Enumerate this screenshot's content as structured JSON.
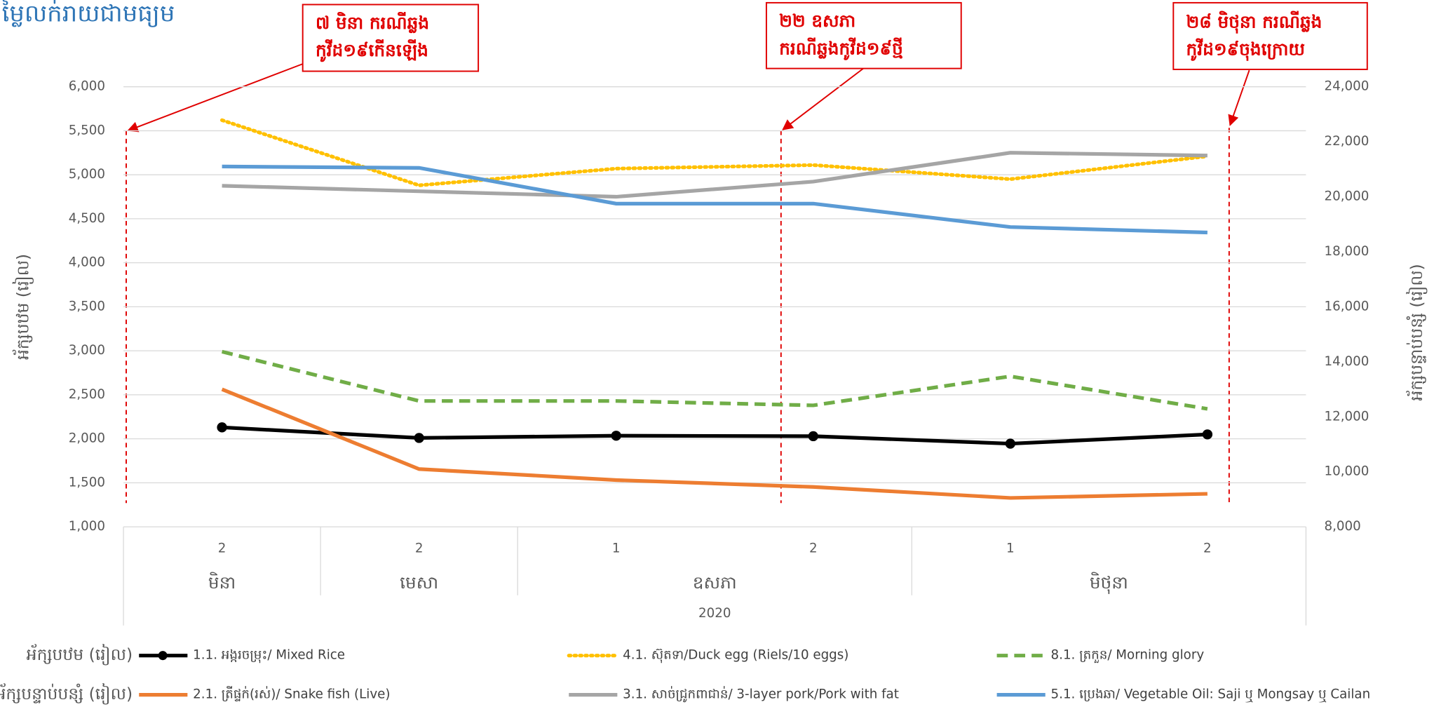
{
  "chart_data": {
    "type": "line",
    "title": "ម្លៃលក់រាយជាមធ្យម",
    "y_label": "អ័ក្សបឋម (រៀល)",
    "y2_label": "អ័ក្សបន្ទាប់បន្សំ (រៀល)",
    "categories": [
      "2",
      "2",
      "1",
      "2",
      "1",
      "2"
    ],
    "months": [
      "មិនា",
      "មេសា",
      "ឧសភា",
      null,
      "មិថុនា",
      null
    ],
    "year": "2020",
    "ylim": [
      1000,
      6000
    ],
    "yticks": [
      {
        "value": 1000,
        "label": "1,000"
      },
      {
        "value": 1500,
        "label": "1,500"
      },
      {
        "value": 2000,
        "label": "2,000"
      },
      {
        "value": 2500,
        "label": "2,500"
      },
      {
        "value": 3000,
        "label": "3,000"
      },
      {
        "value": 3500,
        "label": "3,500"
      },
      {
        "value": 4000,
        "label": "4,000"
      },
      {
        "value": 4500,
        "label": "4,500"
      },
      {
        "value": 5000,
        "label": "5,000"
      },
      {
        "value": 5500,
        "label": "5,500"
      },
      {
        "value": 6000,
        "label": "6,000"
      }
    ],
    "y2lim": [
      8000,
      24000
    ],
    "y2ticks": [
      {
        "value": 8000,
        "label": "8,000"
      },
      {
        "value": 10000,
        "label": "10,000"
      },
      {
        "value": 12000,
        "label": "12,000"
      },
      {
        "value": 14000,
        "label": "14,000"
      },
      {
        "value": 16000,
        "label": "16,000"
      },
      {
        "value": 18000,
        "label": "18,000"
      },
      {
        "value": 20000,
        "label": "20,000"
      },
      {
        "value": 22000,
        "label": "22,000"
      },
      {
        "value": 24000,
        "label": "24,000"
      }
    ],
    "grid": true,
    "legend_groups": [
      "អ័ក្សបឋម (រៀល)",
      "អ័ក្សបន្ទាប់បន្សំ (រៀល)"
    ],
    "series": [
      {
        "name": "1.1. អង្ករចម្រុះ/ Mixed Rice",
        "color": "#000000",
        "style": "solid",
        "marker": true,
        "axis": "y",
        "values": [
          2130,
          2010,
          2035,
          2030,
          1945,
          2050
        ]
      },
      {
        "name": "4.1. ស៊ុតទា/Duck egg (Riels/10 eggs)",
        "color": "#ffc000",
        "style": "dotted",
        "axis": "y",
        "values": [
          5620,
          4880,
          5070,
          5110,
          4950,
          5210
        ]
      },
      {
        "name": "8.1. ត្រកួន/ Morning glory",
        "color": "#70ad47",
        "style": "dashed",
        "axis": "y",
        "values": [
          2990,
          2430,
          2430,
          2380,
          2710,
          2340
        ]
      },
      {
        "name": "2.1. ត្រីផ្ទក់(រស់)/ Snake fish (Live)",
        "color": "#ed7d31",
        "style": "solid",
        "axis": "y2",
        "values": [
          13000,
          10100,
          9700,
          9450,
          9050,
          9200
        ]
      },
      {
        "name": "3.1. សាច់ជ្រូកពាជាន់/  3-layer pork/Pork with fat",
        "color": "#a5a5a5",
        "style": "solid",
        "axis": "y2",
        "values": [
          20400,
          20200,
          20000,
          20550,
          21600,
          21500
        ]
      },
      {
        "name": "5.1. ប្រេងឆា/ Vegetable Oil: Saji ឬ Mongsay ឬ Cailan",
        "color": "#5b9bd5",
        "style": "solid",
        "axis": "y2",
        "values": [
          21100,
          21050,
          19750,
          19750,
          18900,
          18700
        ]
      }
    ],
    "annotations": [
      {
        "lines": [
          "៧ មិនា ករណីឆ្លង",
          "កូវីដ១៩កើនឡើង"
        ]
      },
      {
        "lines": [
          "២២ ឧសភា",
          "ករណីឆ្លងកូវីដ១៩ថ្មី"
        ]
      },
      {
        "lines": [
          "២៨ មិថុនា ករណីឆ្លង",
          "កូវីដ១៩ចុងក្រោយ"
        ]
      }
    ]
  }
}
